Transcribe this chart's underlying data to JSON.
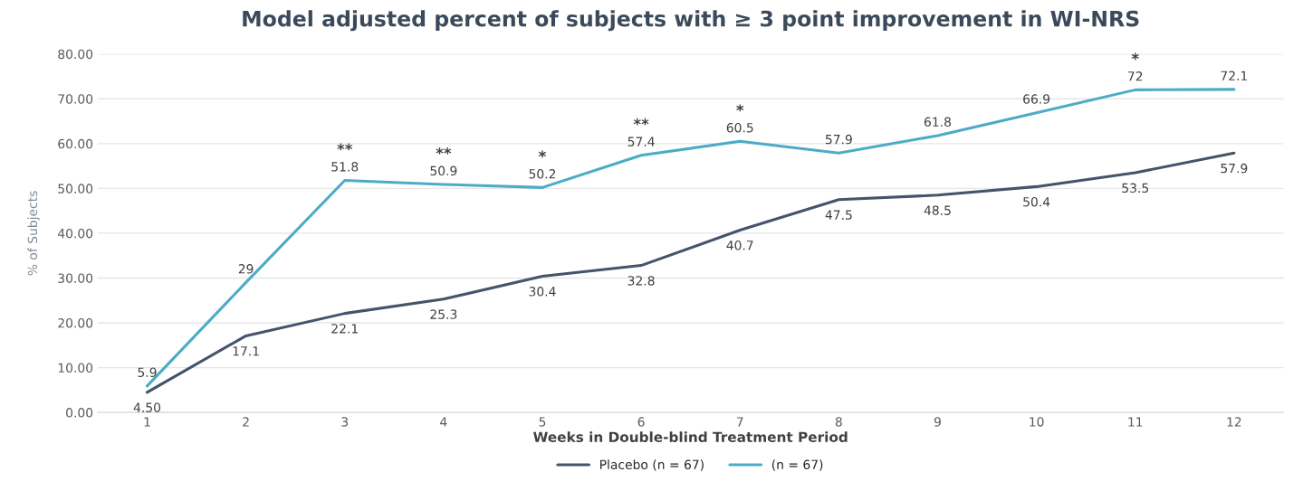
{
  "chart_data": {
    "type": "line",
    "title": "Model adjusted percent of subjects with ≥ 3 point improvement in WI-NRS",
    "xlabel": "Weeks in Double-blind Treatment Period",
    "ylabel": "% of Subjects",
    "categories": [
      "1",
      "2",
      "3",
      "4",
      "5",
      "6",
      "7",
      "8",
      "9",
      "10",
      "11",
      "12"
    ],
    "series": [
      {
        "name": "Placebo (n = 67)",
        "color": "#44546a",
        "values": [
          4.5,
          17.1,
          22.1,
          25.3,
          30.4,
          32.8,
          40.7,
          47.5,
          48.5,
          50.4,
          53.5,
          57.9
        ],
        "value_labels": [
          "4.50",
          "17.1",
          "22.1",
          "25.3",
          "30.4",
          "32.8",
          "40.7",
          "47.5",
          "48.5",
          "50.4",
          "53.5",
          "57.9"
        ]
      },
      {
        "name": "(n = 67)",
        "color": "#4bacc6",
        "values": [
          5.9,
          29,
          51.8,
          50.9,
          50.2,
          57.4,
          60.5,
          57.9,
          61.8,
          66.9,
          72,
          72.1
        ],
        "value_labels": [
          "5.9",
          "29",
          "51.8",
          "50.9",
          "50.2",
          "57.4",
          "60.5",
          "57.9",
          "61.8",
          "66.9",
          "72",
          "72.1"
        ]
      }
    ],
    "annotations": [
      {
        "text": "**",
        "x": "3",
        "y": 51.8
      },
      {
        "text": "**",
        "x": "4",
        "y": 50.9
      },
      {
        "text": "*",
        "x": "5",
        "y": 50.2
      },
      {
        "text": "**",
        "x": "6",
        "y": 57.4
      },
      {
        "text": "*",
        "x": "7",
        "y": 60.5
      },
      {
        "text": "*",
        "x": "11",
        "y": 72
      }
    ],
    "ylim": [
      0,
      80
    ],
    "yticks": [
      {
        "value": 0,
        "label": "0.00"
      },
      {
        "value": 10,
        "label": "10.00"
      },
      {
        "value": 20,
        "label": "20.00"
      },
      {
        "value": 30,
        "label": "30.00"
      },
      {
        "value": 40,
        "label": "40.00"
      },
      {
        "value": 50,
        "label": "50.00"
      },
      {
        "value": 60,
        "label": "60.00"
      },
      {
        "value": 70,
        "label": "70.00"
      },
      {
        "value": 80,
        "label": "80.00"
      }
    ],
    "grid": "y",
    "legend": "bottom",
    "marker": "none",
    "line_style": "solid"
  }
}
